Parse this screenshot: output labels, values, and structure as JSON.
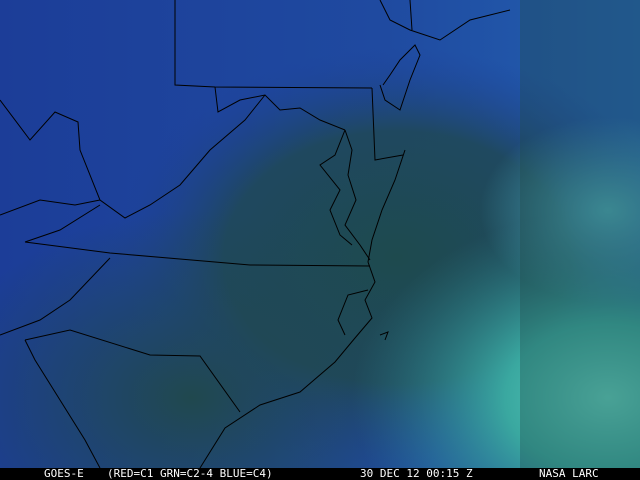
{
  "caption": {
    "satellite": "GOES-E",
    "channels": "(RED=C1 GRN=C2-4 BLUE=C4)",
    "datetime": "30 DEC 12 00:15 Z",
    "source": "NASA LARC"
  },
  "colors": {
    "land_blue": "#1d3f9c",
    "cloud_teal": "#1f4a50",
    "low_cloud_cyan": "#3fb0a8",
    "border_line": "#000000",
    "caption_bg": "#000000",
    "caption_text": "#ffffff"
  }
}
